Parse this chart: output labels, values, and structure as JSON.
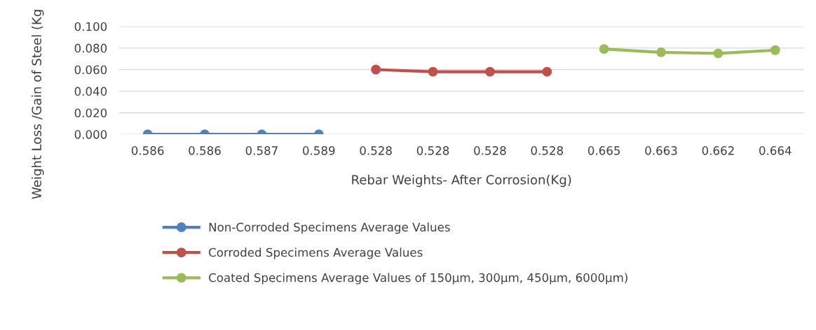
{
  "chart_data": {
    "type": "line",
    "xlabel": "Rebar Weights- After Corrosion(Kg)",
    "ylabel": "Weight Loss /Gain of Steel (Kg",
    "categories": [
      "0.586",
      "0.586",
      "0.587",
      "0.589",
      "0.528",
      "0.528",
      "0.528",
      "0.528",
      "0.665",
      "0.663",
      "0.662",
      "0.664"
    ],
    "series": [
      {
        "name": "Non-Corroded Specimens Average Values",
        "color": "#4f81bd",
        "values": [
          0.0,
          0.0,
          0.0,
          0.0,
          null,
          null,
          null,
          null,
          null,
          null,
          null,
          null
        ]
      },
      {
        "name": "Corroded Specimens Average Values",
        "color": "#c0504d",
        "values": [
          null,
          null,
          null,
          null,
          0.06,
          0.058,
          0.058,
          0.058,
          null,
          null,
          null,
          null
        ]
      },
      {
        "name": "Coated Specimens Average Values of 150µm, 300µm, 450µm, 6000µm)",
        "color": "#9bbb59",
        "values": [
          null,
          null,
          null,
          null,
          null,
          null,
          null,
          null,
          0.079,
          0.076,
          0.075,
          0.078
        ]
      }
    ],
    "ylim": [
      0,
      0.1
    ],
    "yticks": [
      {
        "value": 0,
        "label": "0.000"
      },
      {
        "value": 0.02,
        "label": "0.020"
      },
      {
        "value": 0.04,
        "label": "0.040"
      },
      {
        "value": 0.06,
        "label": "0.060"
      },
      {
        "value": 0.08,
        "label": "0.080"
      },
      {
        "value": 0.1,
        "label": "0.100"
      }
    ],
    "grid": "y",
    "legend": "bottom",
    "marker": "circle",
    "line_style": "solid"
  }
}
